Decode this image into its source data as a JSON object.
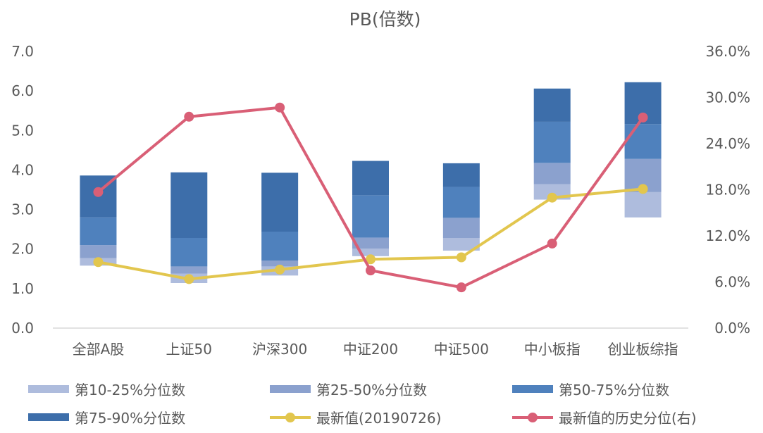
{
  "chart_data": {
    "type": "bar",
    "title": "PB(倍数)",
    "categories": [
      "全部A股",
      "上证50",
      "沪深300",
      "中证200",
      "中证500",
      "中小板指",
      "创业板综指"
    ],
    "left_axis": {
      "ylim": [
        0,
        7
      ],
      "ticks": [
        "0.0",
        "1.0",
        "2.0",
        "3.0",
        "4.0",
        "5.0",
        "6.0",
        "7.0"
      ]
    },
    "right_axis": {
      "ylim": [
        0,
        36
      ],
      "ticks": [
        "0.0%",
        "6.0%",
        "12.0%",
        "18.0%",
        "24.0%",
        "30.0%",
        "36.0%"
      ]
    },
    "percentiles": {
      "p10": [
        1.58,
        1.14,
        1.33,
        1.82,
        1.96,
        3.25,
        2.8
      ],
      "p25": [
        1.77,
        1.38,
        1.56,
        2.01,
        2.28,
        3.64,
        3.44
      ],
      "p50": [
        2.1,
        1.56,
        1.71,
        2.29,
        2.79,
        4.18,
        4.28
      ],
      "p75": [
        2.8,
        2.28,
        2.44,
        3.36,
        3.57,
        5.22,
        5.16
      ],
      "p90": [
        3.86,
        3.94,
        3.93,
        4.23,
        4.17,
        6.06,
        6.22
      ]
    },
    "series": [
      {
        "name": "第10-25%分位数",
        "type": "bar",
        "color": "#aebcdd"
      },
      {
        "name": "第25-50%分位数",
        "type": "bar",
        "color": "#8ba1ce"
      },
      {
        "name": "第50-75%分位数",
        "type": "bar",
        "color": "#4f81bd"
      },
      {
        "name": "第75-90%分位数",
        "type": "bar",
        "color": "#3d6eaa"
      },
      {
        "name": "最新值(20190726)",
        "type": "line",
        "axis": "left",
        "color": "#e2c64e",
        "values": [
          1.67,
          1.24,
          1.48,
          1.74,
          1.79,
          3.3,
          3.52
        ]
      },
      {
        "name": "最新值的历史分位(右)",
        "type": "line",
        "axis": "right",
        "color": "#d95f76",
        "values": [
          17.7,
          27.5,
          28.7,
          7.5,
          5.3,
          11.0,
          27.4
        ]
      }
    ],
    "legend_position": "bottom",
    "grid": false
  }
}
